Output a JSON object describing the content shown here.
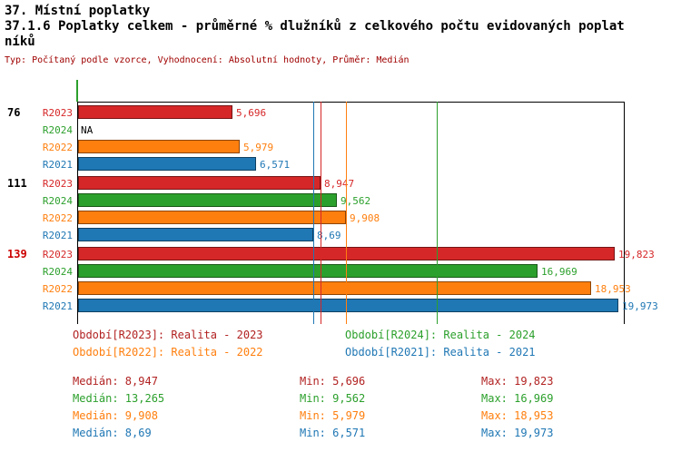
{
  "header": {
    "title": "37. Místní poplatky",
    "subtitle_line1": "37.1.6 Poplatky celkem - průměrné % dlužníků z celkového počtu evidovaných poplat",
    "subtitle_line2": "níků",
    "meta": "Typ: Počítaný podle vzorce, Vyhodnocení: Absolutní hodnoty, Průměr: Medián",
    "meta_color": "#a00000"
  },
  "chart_data": {
    "type": "bar",
    "orientation": "horizontal",
    "xlim": [
      0,
      20
    ],
    "average_type": "Medián",
    "na_text_color": "#000000",
    "groups": [
      {
        "label": "76",
        "color": "#000000"
      },
      {
        "label": "111",
        "color": "#000000"
      },
      {
        "label": "139",
        "color": "#cc0000"
      }
    ],
    "series": [
      {
        "name": "R2023",
        "color": "#d62728",
        "values": [
          5.696,
          8.947,
          19.823
        ],
        "value_labels": [
          "5,696",
          "8,947",
          "19,823"
        ],
        "median": 8.947,
        "median_label": "8,947"
      },
      {
        "name": "R2024",
        "color": "#2ca02c",
        "values": [
          null,
          9.562,
          16.969
        ],
        "value_labels": [
          "NA",
          "9,562",
          "16,969"
        ],
        "median": 13.265,
        "median_label": "13,265"
      },
      {
        "name": "R2022",
        "color": "#ff7f0e",
        "values": [
          5.979,
          9.908,
          18.953
        ],
        "value_labels": [
          "5,979",
          "9,908",
          "18,953"
        ],
        "median": 9.908,
        "median_label": "9,908"
      },
      {
        "name": "R2021",
        "color": "#1f77b4",
        "values": [
          6.571,
          8.69,
          19.973
        ],
        "value_labels": [
          "6,571",
          "8,69",
          "19,973"
        ],
        "median": 8.69,
        "median_label": "8,69"
      }
    ]
  },
  "legend": [
    {
      "text": "Období[R2023]: Realita - 2023",
      "color": "#b22222"
    },
    {
      "text": "Období[R2024]: Realita - 2024",
      "color": "#2ca02c"
    },
    {
      "text": "Období[R2022]: Realita - 2022",
      "color": "#ff7f0e"
    },
    {
      "text": "Období[R2021]: Realita - 2021",
      "color": "#1f77b4"
    }
  ],
  "stats": [
    {
      "median": "Medián: 8,947",
      "min": "Min: 5,696",
      "max": "Max: 19,823",
      "color": "#b22222"
    },
    {
      "median": "Medián: 13,265",
      "min": "Min: 9,562",
      "max": "Max: 16,969",
      "color": "#2ca02c"
    },
    {
      "median": "Medián: 9,908",
      "min": "Min: 5,979",
      "max": "Max: 18,953",
      "color": "#ff7f0e"
    },
    {
      "median": "Medián: 8,69",
      "min": "Min: 6,571",
      "max": "Max: 19,973",
      "color": "#1f77b4"
    }
  ]
}
